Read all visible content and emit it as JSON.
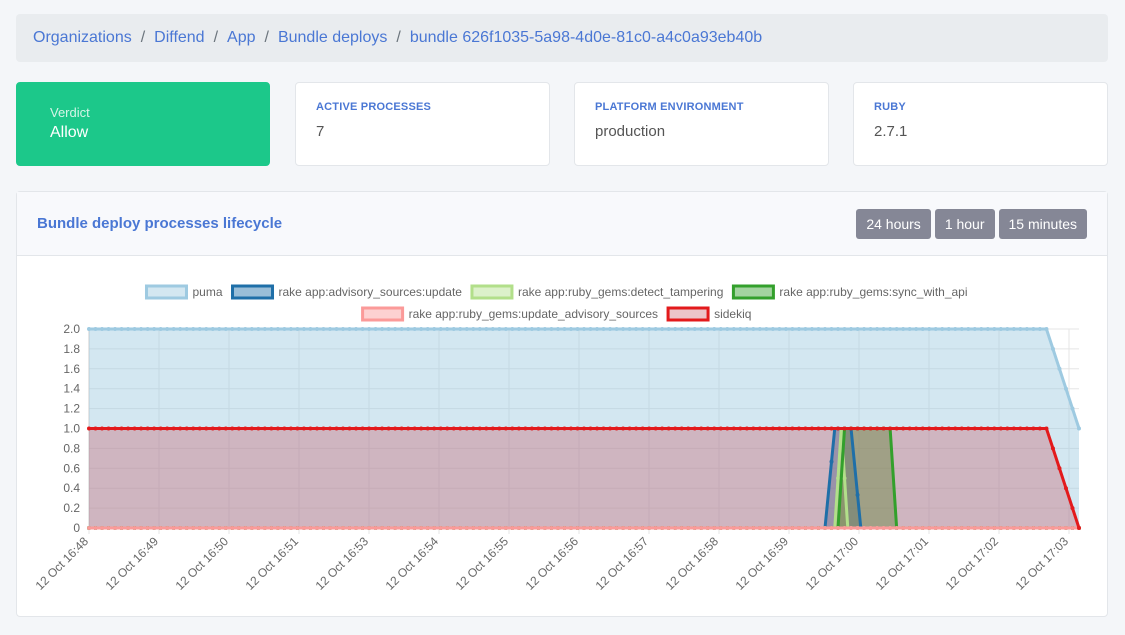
{
  "breadcrumb": [
    "Organizations",
    "Diffend",
    "App",
    "Bundle deploys",
    "bundle 626f1035-5a98-4d0e-81c0-a4c0a93eb40b"
  ],
  "verdict": {
    "label": "Verdict",
    "value": "Allow"
  },
  "stats": [
    {
      "label": "ACTIVE PROCESSES",
      "value": "7"
    },
    {
      "label": "PLATFORM ENVIRONMENT",
      "value": "production"
    },
    {
      "label": "RUBY",
      "value": "2.7.1"
    }
  ],
  "panel": {
    "title": "Bundle deploy processes lifecycle",
    "buttons": [
      "24 hours",
      "1 hour",
      "15 minutes"
    ]
  },
  "colors": {
    "accent": "#4a77d4",
    "verdict": "#1cc88a",
    "button": "#858796"
  },
  "chart_data": {
    "type": "area",
    "ylim": [
      0,
      2
    ],
    "yticks": [
      "2.0",
      "1.8",
      "1.6",
      "1.4",
      "1.2",
      "1.0",
      "0.8",
      "0.6",
      "0.4",
      "0.2",
      "0"
    ],
    "xticks": [
      "12 Oct 16:48",
      "12 Oct 16:49",
      "12 Oct 16:50",
      "12 Oct 16:51",
      "12 Oct 16:53",
      "12 Oct 16:54",
      "12 Oct 16:55",
      "12 Oct 16:56",
      "12 Oct 16:57",
      "12 Oct 16:58",
      "12 Oct 16:59",
      "12 Oct 17:00",
      "12 Oct 17:01",
      "12 Oct 17:02",
      "12 Oct 17:03"
    ],
    "xrange_minutes": [
      0,
      15.2
    ],
    "series": [
      {
        "name": "puma",
        "color": "#9ecae1",
        "fill": "rgba(158,202,225,0.45)",
        "points": [
          [
            0,
            2
          ],
          [
            14.7,
            2
          ],
          [
            15.2,
            1
          ]
        ]
      },
      {
        "name": "rake app:advisory_sources:update",
        "color": "#1f6fa8",
        "fill": "rgba(31,111,168,0.45)",
        "points": [
          [
            0,
            0
          ],
          [
            11.3,
            0
          ],
          [
            11.45,
            1
          ],
          [
            11.7,
            1
          ],
          [
            11.85,
            0
          ],
          [
            15.2,
            0
          ]
        ]
      },
      {
        "name": "rake app:ruby_gems:detect_tampering",
        "color": "#b2df8a",
        "fill": "rgba(178,223,138,0.45)",
        "points": [
          [
            0,
            0
          ],
          [
            11.45,
            0
          ],
          [
            11.55,
            1
          ],
          [
            11.65,
            0
          ],
          [
            15.2,
            0
          ]
        ]
      },
      {
        "name": "rake app:ruby_gems:sync_with_api",
        "color": "#33a02c",
        "fill": "rgba(51,160,44,0.45)",
        "points": [
          [
            0,
            0
          ],
          [
            11.5,
            0
          ],
          [
            11.6,
            1
          ],
          [
            12.3,
            1
          ],
          [
            12.4,
            0
          ],
          [
            15.2,
            0
          ]
        ]
      },
      {
        "name": "rake app:ruby_gems:update_advisory_sources",
        "color": "#fb9a99",
        "fill": "rgba(251,154,153,0.45)",
        "points": [
          [
            0,
            0
          ],
          [
            15.2,
            0
          ]
        ]
      },
      {
        "name": "sidekiq",
        "color": "#e31a1c",
        "fill": "rgba(200,90,100,0.35)",
        "points": [
          [
            0,
            1
          ],
          [
            14.7,
            1
          ],
          [
            15.2,
            0
          ]
        ]
      }
    ],
    "legend_position": "top"
  }
}
